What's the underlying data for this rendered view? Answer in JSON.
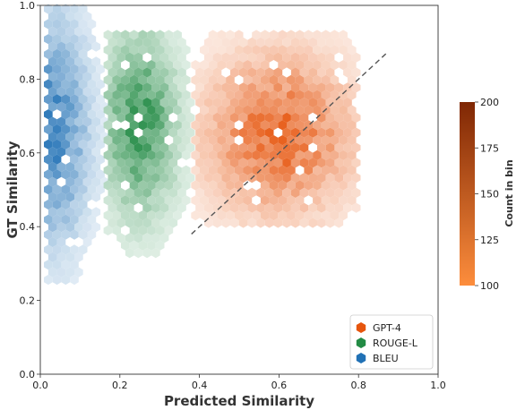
{
  "chart_data": {
    "type": "hexbin",
    "xlabel": "Predicted Similarity",
    "ylabel": "GT Similarity",
    "xlim": [
      0.0,
      1.0
    ],
    "ylim": [
      0.0,
      1.0
    ],
    "x_ticks": [
      "0.0",
      "0.2",
      "0.4",
      "0.6",
      "0.8",
      "1.0"
    ],
    "y_ticks": [
      "0.0",
      "0.2",
      "0.4",
      "0.6",
      "0.8",
      "1.0"
    ],
    "grid": false,
    "legend_position": "bottom-right",
    "reference_line": {
      "style": "dashed",
      "color": "#555555",
      "from": [
        0.38,
        0.38
      ],
      "to": [
        0.87,
        0.87
      ]
    },
    "colorbar": {
      "label": "Count in bin",
      "ticks": [
        "100",
        "125",
        "150",
        "175",
        "200"
      ],
      "range": [
        100,
        200
      ],
      "colors": [
        "#fd8d3c",
        "#7f2704"
      ]
    },
    "series": [
      {
        "name": "BLEU",
        "color": "#2171b5",
        "x_range": [
          0.02,
          0.22
        ],
        "y_range": [
          0.25,
          0.99
        ],
        "density_peak": [
          0.03,
          0.66
        ]
      },
      {
        "name": "ROUGE-L",
        "color": "#238b45",
        "x_range": [
          0.17,
          0.38
        ],
        "y_range": [
          0.31,
          0.92
        ],
        "density_peak": [
          0.25,
          0.68
        ]
      },
      {
        "name": "GPT-4",
        "color": "#e6550d",
        "x_range": [
          0.39,
          0.8
        ],
        "y_range": [
          0.4,
          0.92
        ],
        "density_peak": [
          0.6,
          0.65
        ]
      }
    ]
  }
}
